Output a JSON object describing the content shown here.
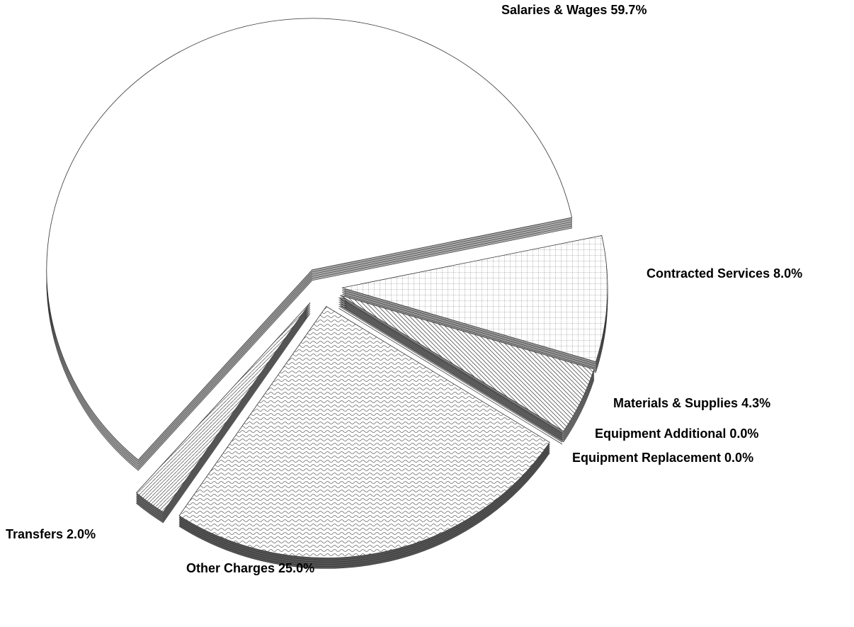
{
  "chart_data": {
    "type": "pie",
    "categories": [
      "Contracted Services",
      "Materials & Supplies",
      "Equipment Additional",
      "Equipment Replacement",
      "Other Charges",
      "Transfers",
      "Salaries & Wages"
    ],
    "values": [
      8.0,
      4.3,
      0.0,
      0.0,
      25.0,
      2.0,
      59.7
    ],
    "value_labels": [
      "8.0%",
      "4.3%",
      "0.0%",
      "0.0%",
      "25.0%",
      "2.0%",
      "59.7%"
    ]
  }
}
